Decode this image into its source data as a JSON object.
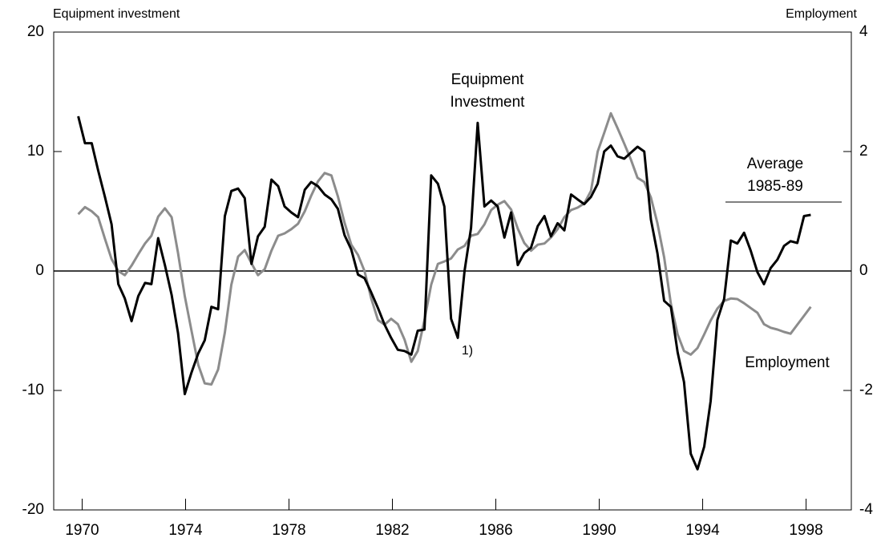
{
  "chart_data": {
    "type": "line",
    "y_label": "Equipment investment",
    "y2_label": "Employment",
    "xlim": [
      1968.9,
      1999.75
    ],
    "xticks": [
      1970,
      1974,
      1978,
      1982,
      1986,
      1990,
      1994,
      1998
    ],
    "ylim": [
      -20,
      20
    ],
    "yticks": [
      -20,
      -10,
      0,
      10,
      20
    ],
    "y2lim": [
      -4,
      4
    ],
    "y2ticks": [
      -4,
      -2,
      0,
      2,
      4
    ],
    "annotations": [
      {
        "lines": [
          "Equipment",
          "Investment"
        ]
      },
      {
        "lines": [
          "Average",
          "1985-89"
        ]
      },
      {
        "lines": [
          "Employment"
        ]
      },
      {
        "lines": [
          "1)"
        ]
      }
    ],
    "x": [
      1969.85,
      1970.11,
      1970.37,
      1970.62,
      1970.88,
      1971.14,
      1971.4,
      1971.65,
      1971.91,
      1972.17,
      1972.43,
      1972.68,
      1972.94,
      1973.2,
      1973.46,
      1973.71,
      1973.97,
      1974.23,
      1974.49,
      1974.74,
      1975.0,
      1975.26,
      1975.52,
      1975.77,
      1976.03,
      1976.29,
      1976.55,
      1976.8,
      1977.06,
      1977.32,
      1977.58,
      1977.83,
      1978.09,
      1978.35,
      1978.61,
      1978.86,
      1979.12,
      1979.38,
      1979.64,
      1979.89,
      1980.15,
      1980.41,
      1980.67,
      1980.92,
      1981.18,
      1981.44,
      1981.7,
      1981.95,
      1982.21,
      1982.47,
      1982.73,
      1982.98,
      1983.24,
      1983.5,
      1983.76,
      1984.01,
      1984.27,
      1984.53,
      1984.79,
      1985.04,
      1985.3,
      1985.56,
      1985.82,
      1986.07,
      1986.33,
      1986.59,
      1986.85,
      1987.1,
      1987.36,
      1987.62,
      1987.88,
      1988.13,
      1988.39,
      1988.65,
      1988.91,
      1989.16,
      1989.42,
      1989.68,
      1989.94,
      1990.19,
      1990.45,
      1990.71,
      1990.97,
      1991.22,
      1991.48,
      1991.74,
      1992.0,
      1992.25,
      1992.51,
      1992.77,
      1993.03,
      1993.28,
      1993.54,
      1993.8,
      1994.06,
      1994.31,
      1994.57,
      1994.83,
      1995.09,
      1995.34,
      1995.6,
      1995.86,
      1996.12,
      1996.37,
      1996.63,
      1996.89,
      1997.15,
      1997.4,
      1997.66,
      1997.92,
      1998.18
    ],
    "series": [
      {
        "name": "Equipment Investment",
        "color": "#000000",
        "axis": "y",
        "values": [
          12.95,
          10.7,
          10.7,
          8.4,
          6.2,
          3.9,
          -1.1,
          -2.3,
          -4.2,
          -2.1,
          -1.0,
          -1.1,
          2.75,
          0.5,
          -2.0,
          -5.2,
          -10.3,
          -8.5,
          -6.9,
          -5.8,
          -3.0,
          -3.2,
          4.6,
          6.7,
          6.9,
          6.1,
          0.6,
          2.9,
          3.7,
          7.65,
          7.1,
          5.4,
          4.9,
          4.5,
          6.8,
          7.45,
          7.1,
          6.4,
          6.0,
          5.2,
          3.0,
          1.8,
          -0.3,
          -0.6,
          -1.8,
          -3.1,
          -4.5,
          -5.6,
          -6.6,
          -6.7,
          -7.0,
          -5.0,
          -4.9,
          8.0,
          7.3,
          5.4,
          -4.0,
          -5.6,
          0,
          3.6,
          12.4,
          5.4,
          5.9,
          5.4,
          2.8,
          4.9,
          0.5,
          1.5,
          1.95,
          3.75,
          4.6,
          2.9,
          4.0,
          3.4,
          6.4,
          6.0,
          5.6,
          6.2,
          7.3,
          10.0,
          10.5,
          9.6,
          9.4,
          9.9,
          10.4,
          10.0,
          4.3,
          1.5,
          -2.5,
          -3.0,
          -6.8,
          -9.3,
          -15.3,
          -16.6,
          -14.7,
          -10.9,
          -4.1,
          -2.35,
          2.55,
          2.3,
          3.2,
          1.7,
          -0.1,
          -1.1,
          0.25,
          0.95,
          2.1,
          2.5,
          2.35,
          4.6,
          4.7
        ]
      },
      {
        "name": "Employment",
        "color": "#8c8c8c",
        "axis": "y2",
        "values": [
          0.95,
          1.07,
          1.0,
          0.9,
          0.54,
          0.2,
          0,
          -0.07,
          0.09,
          0.28,
          0.46,
          0.59,
          0.91,
          1.05,
          0.9,
          0.3,
          -0.42,
          -1.0,
          -1.57,
          -1.88,
          -1.9,
          -1.65,
          -1.03,
          -0.23,
          0.24,
          0.35,
          0.13,
          -0.07,
          0.03,
          0.34,
          0.59,
          0.63,
          0.7,
          0.79,
          1.0,
          1.26,
          1.5,
          1.64,
          1.6,
          1.25,
          0.81,
          0.44,
          0.27,
          0,
          -0.46,
          -0.82,
          -0.9,
          -0.8,
          -0.89,
          -1.15,
          -1.52,
          -1.34,
          -0.82,
          -0.23,
          0.12,
          0.16,
          0.21,
          0.36,
          0.42,
          0.59,
          0.62,
          0.78,
          1.02,
          1.11,
          1.17,
          1.03,
          0.71,
          0.47,
          0.34,
          0.44,
          0.46,
          0.56,
          0.7,
          0.9,
          1.02,
          1.06,
          1.13,
          1.34,
          2.0,
          2.31,
          2.64,
          2.39,
          2.13,
          1.87,
          1.56,
          1.49,
          1.23,
          0.8,
          0.23,
          -0.55,
          -1.06,
          -1.34,
          -1.4,
          -1.29,
          -1.06,
          -0.83,
          -0.63,
          -0.5,
          -0.46,
          -0.47,
          -0.54,
          -0.62,
          -0.7,
          -0.89,
          -0.95,
          -0.98,
          -1.02,
          -1.05,
          -0.9,
          -0.75,
          -0.6
        ]
      }
    ]
  }
}
